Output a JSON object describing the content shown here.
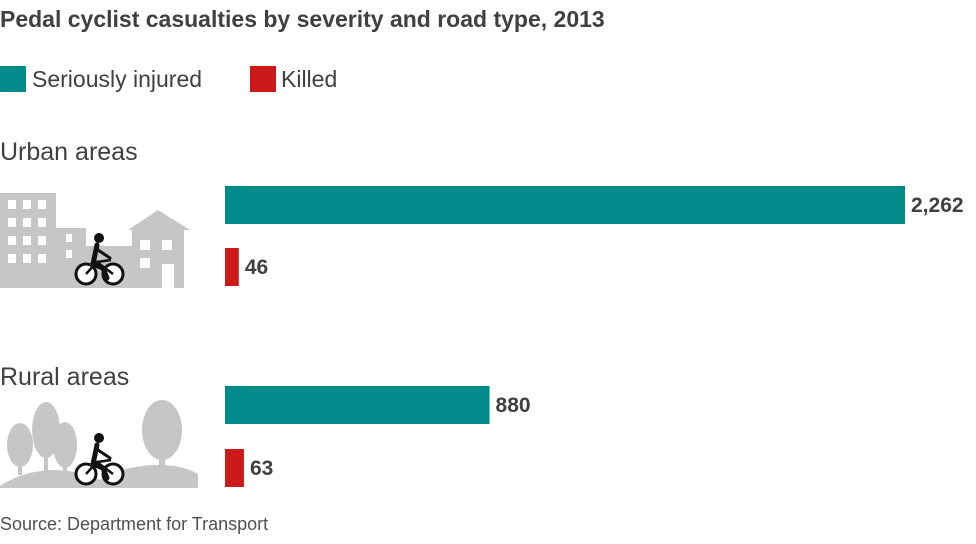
{
  "chart_data": {
    "type": "bar",
    "orientation": "horizontal",
    "title": "Pedal cyclist casualties by severity and road type, 2013",
    "categories": [
      "Urban areas",
      "Rural areas"
    ],
    "series": [
      {
        "name": "Seriously injured",
        "values": [
          2262,
          880
        ],
        "labels": [
          "2,262",
          "880"
        ],
        "color": "#008b8b"
      },
      {
        "name": "Killed",
        "values": [
          46,
          63
        ],
        "labels": [
          "46",
          "63"
        ],
        "color": "#cc1a1a"
      }
    ],
    "xlim": [
      0,
      2262
    ],
    "grid": false,
    "legend": "top-left",
    "source": "Source: Department for Transport"
  }
}
